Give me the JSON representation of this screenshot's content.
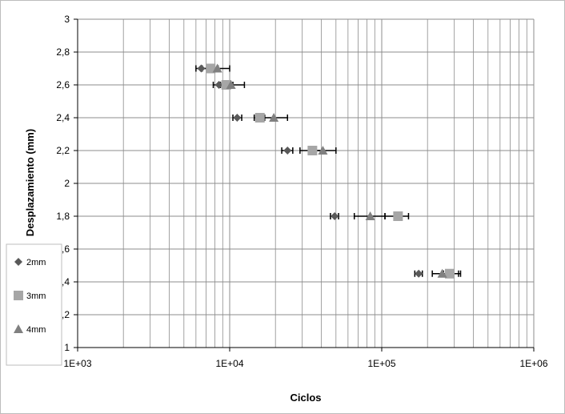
{
  "chart_data": {
    "type": "scatter",
    "title": "",
    "xlabel": "Ciclos",
    "ylabel": "Desplazamiento (mm)",
    "xscale": "log",
    "xlim": [
      1000,
      1000000
    ],
    "ylim": [
      1,
      3
    ],
    "x_ticks": [
      "1E+03",
      "1E+04",
      "1E+05",
      "1E+06"
    ],
    "y_ticks": [
      "1",
      "1,2",
      "1,4",
      "1,6",
      "1,8",
      "2",
      "2,2",
      "2,4",
      "2,6",
      "2,8",
      "3"
    ],
    "y_tick_values": [
      1,
      1.2,
      1.4,
      1.6,
      1.8,
      2,
      2.2,
      2.4,
      2.6,
      2.8,
      3
    ],
    "x_tick_values": [
      1000,
      10000,
      100000,
      1000000
    ],
    "grid": true,
    "legend_position": "bottom-left",
    "error_bars": "horizontal",
    "series": [
      {
        "name": "2mm",
        "marker": "diamond",
        "color": "#595959",
        "points": [
          {
            "x": 6500,
            "y": 2.7,
            "xerr_low": 6000,
            "xerr_high": 7500
          },
          {
            "x": 8500,
            "y": 2.6,
            "xerr_low": 7800,
            "xerr_high": 9300
          },
          {
            "x": 11200,
            "y": 2.4,
            "xerr_low": 10500,
            "xerr_high": 12000
          },
          {
            "x": 24000,
            "y": 2.2,
            "xerr_low": 22000,
            "xerr_high": 26000
          },
          {
            "x": 49000,
            "y": 1.8,
            "xerr_low": 46000,
            "xerr_high": 52000
          },
          {
            "x": 175000,
            "y": 1.45,
            "xerr_low": 165000,
            "xerr_high": 185000
          }
        ]
      },
      {
        "name": "3mm",
        "marker": "square",
        "color": "#a6a6a6",
        "points": [
          {
            "x": 7500,
            "y": 2.7,
            "xerr_low": 6600,
            "xerr_high": 8400
          },
          {
            "x": 9500,
            "y": 2.6,
            "xerr_low": 8700,
            "xerr_high": 10500
          },
          {
            "x": 15800,
            "y": 2.4,
            "xerr_low": 14500,
            "xerr_high": 17000
          },
          {
            "x": 35000,
            "y": 2.2,
            "xerr_low": 29000,
            "xerr_high": 41000
          },
          {
            "x": 128000,
            "y": 1.8,
            "xerr_low": 105000,
            "xerr_high": 150000
          },
          {
            "x": 280000,
            "y": 1.45,
            "xerr_low": 255000,
            "xerr_high": 320000
          }
        ]
      },
      {
        "name": "4mm",
        "marker": "triangle",
        "color": "#808080",
        "points": [
          {
            "x": 8300,
            "y": 2.7,
            "xerr_low": 7200,
            "xerr_high": 10000
          },
          {
            "x": 10200,
            "y": 2.6,
            "xerr_low": 9000,
            "xerr_high": 12500
          },
          {
            "x": 19500,
            "y": 2.4,
            "xerr_low": 16000,
            "xerr_high": 24000
          },
          {
            "x": 41000,
            "y": 2.2,
            "xerr_low": 33000,
            "xerr_high": 50000
          },
          {
            "x": 84000,
            "y": 1.8,
            "xerr_low": 66000,
            "xerr_high": 105000
          },
          {
            "x": 250000,
            "y": 1.45,
            "xerr_low": 215000,
            "xerr_high": 330000
          }
        ]
      }
    ]
  }
}
